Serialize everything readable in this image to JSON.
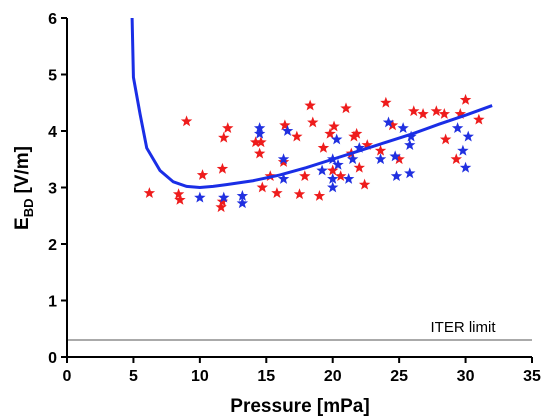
{
  "chart_data": {
    "type": "scatter",
    "xlabel": "Pressure [mPa]",
    "ylabel": {
      "main": "E",
      "sub": "BD",
      "unit": "[V/m]"
    },
    "xlim": [
      0,
      35
    ],
    "xticks": [
      0,
      5,
      10,
      15,
      20,
      25,
      30,
      35
    ],
    "ylim": [
      0,
      6
    ],
    "yticks": [
      0,
      1,
      2,
      3,
      4,
      5,
      6
    ],
    "annotation": {
      "text": "ITER limit",
      "y": 0.3,
      "color": "#555555"
    },
    "series": [
      {
        "type": "scatter",
        "color": "#ee1c1c",
        "x": [
          6.2,
          8.4,
          8.5,
          9.0,
          10.2,
          11.6,
          11.7,
          11.7,
          11.8,
          12.1,
          14.2,
          14.6,
          14.5,
          14.7,
          15.3,
          15.8,
          16.3,
          16.4,
          17.3,
          17.5,
          17.9,
          18.3,
          18.5,
          19.0,
          19.3,
          19.8,
          20.1,
          20.0,
          20.6,
          21.0,
          21.4,
          21.6,
          21.8,
          22.0,
          22.4,
          22.6,
          23.6,
          24.0,
          24.5,
          25.0,
          26.1,
          26.8,
          28.5,
          28.4,
          29.3,
          29.6,
          30.0,
          31.0,
          27.8
        ],
        "values": [
          2.9,
          2.88,
          2.78,
          4.17,
          3.22,
          2.65,
          2.75,
          3.33,
          3.88,
          4.05,
          3.8,
          3.8,
          3.6,
          3.0,
          3.2,
          2.9,
          3.45,
          4.1,
          3.9,
          2.88,
          3.2,
          4.45,
          4.15,
          2.85,
          3.7,
          3.95,
          4.08,
          3.3,
          3.2,
          4.4,
          3.6,
          3.9,
          3.95,
          3.35,
          3.05,
          3.75,
          3.65,
          4.5,
          4.1,
          3.5,
          4.35,
          4.3,
          3.85,
          4.3,
          3.5,
          4.3,
          4.55,
          4.2,
          4.35
        ]
      },
      {
        "type": "scatter",
        "color": "#2030e0",
        "x": [
          10.0,
          11.8,
          13.2,
          13.2,
          14.5,
          14.5,
          16.3,
          16.3,
          16.6,
          19.2,
          20.0,
          20.0,
          20.0,
          20.3,
          21.2,
          21.5,
          23.6,
          24.2,
          24.8,
          24.7,
          25.3,
          25.8,
          25.8,
          25.9,
          29.4,
          29.8,
          30.0,
          30.2,
          20.4,
          22.0
        ],
        "values": [
          2.82,
          2.82,
          2.72,
          2.85,
          4.05,
          3.95,
          3.5,
          3.15,
          4.0,
          3.3,
          3.0,
          3.15,
          3.5,
          3.85,
          3.15,
          3.5,
          3.5,
          4.15,
          3.2,
          3.55,
          4.05,
          3.25,
          3.75,
          3.9,
          4.05,
          3.65,
          3.35,
          3.9,
          3.4,
          3.7
        ]
      },
      {
        "type": "line",
        "color": "#1a2ee6",
        "x": [
          4.9,
          5.0,
          5.5,
          6.0,
          7.0,
          8.0,
          9.0,
          10.0,
          11.0,
          12.0,
          14.0,
          16.0,
          18.0,
          20.0,
          22.0,
          24.0,
          26.0,
          28.0,
          30.0,
          32.0
        ],
        "values": [
          6.0,
          4.95,
          4.3,
          3.7,
          3.3,
          3.1,
          3.02,
          3.0,
          3.02,
          3.05,
          3.12,
          3.22,
          3.35,
          3.5,
          3.65,
          3.8,
          3.95,
          4.12,
          4.28,
          4.45
        ]
      }
    ]
  }
}
